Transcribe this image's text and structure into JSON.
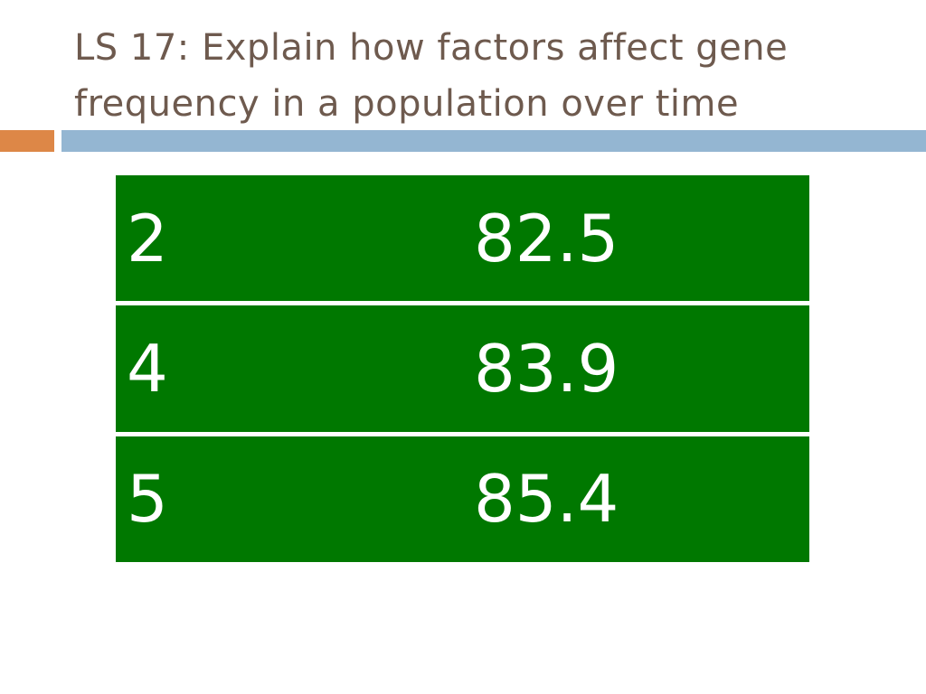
{
  "slide": {
    "title": "LS 17: Explain how factors affect gene frequency in a population over time"
  },
  "colors": {
    "title_text": "#6e5a4e",
    "accent_bar": "#dd8747",
    "divider_bar": "#94b6d2",
    "table_fill": "#007800",
    "table_text": "#ffffff"
  },
  "table": {
    "rows": [
      {
        "col1": "2",
        "col2": "82.5"
      },
      {
        "col1": "4",
        "col2": "83.9"
      },
      {
        "col1": "5",
        "col2": "85.4"
      }
    ]
  }
}
